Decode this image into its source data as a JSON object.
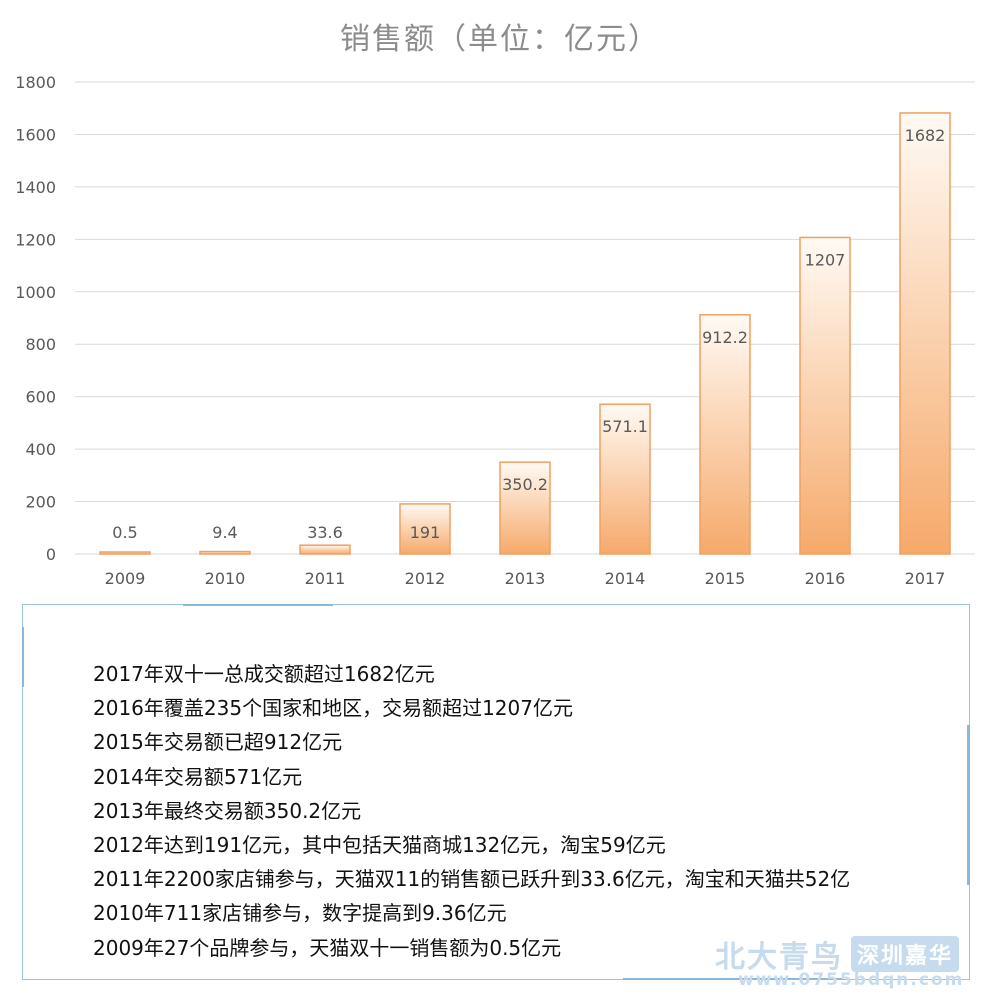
{
  "chart_data": {
    "type": "bar",
    "title": "销售额（单位：亿元）",
    "categories": [
      "2009",
      "2010",
      "2011",
      "2012",
      "2013",
      "2014",
      "2015",
      "2016",
      "2017"
    ],
    "values": [
      0.5,
      9.4,
      33.6,
      191,
      350.2,
      571.1,
      912.2,
      1207,
      1682
    ],
    "value_labels": [
      "0.5",
      "9.4",
      "33.6",
      "191",
      "350.2",
      "571.1",
      "912.2",
      "1207",
      "1682"
    ],
    "ylim": [
      0,
      1800
    ],
    "yticks": [
      "0",
      "200",
      "400",
      "600",
      "800",
      "1000",
      "1200",
      "1400",
      "1600",
      "1800"
    ],
    "grid": true,
    "colors": {
      "bar_top": "#fffaf4",
      "bar_bottom": "#f6a96a",
      "bar_stroke": "#f0a060",
      "grid": "#d9d9d9",
      "label": "#595959"
    }
  },
  "info": {
    "lines": [
      "2017年双十一总成交额超过1682亿元",
      "2016年覆盖235个国家和地区，交易额超过1207亿元",
      "2015年交易额已超912亿元",
      "2014年交易额571亿元",
      "2013年最终交易额350.2亿元",
      "2012年达到191亿元，其中包括天猫商城132亿元，淘宝59亿元",
      "2011年2200家店铺参与，天猫双11的销售额已跃升到33.6亿元，淘宝和天猫共52亿",
      "2010年711家店铺参与，数字提高到9.36亿元",
      "2009年27个品牌参与，天猫双十一销售额为0.5亿元"
    ]
  },
  "watermark": {
    "name": "北大青鸟",
    "city": "深圳嘉华",
    "url": "www.0755bdqn.com"
  }
}
